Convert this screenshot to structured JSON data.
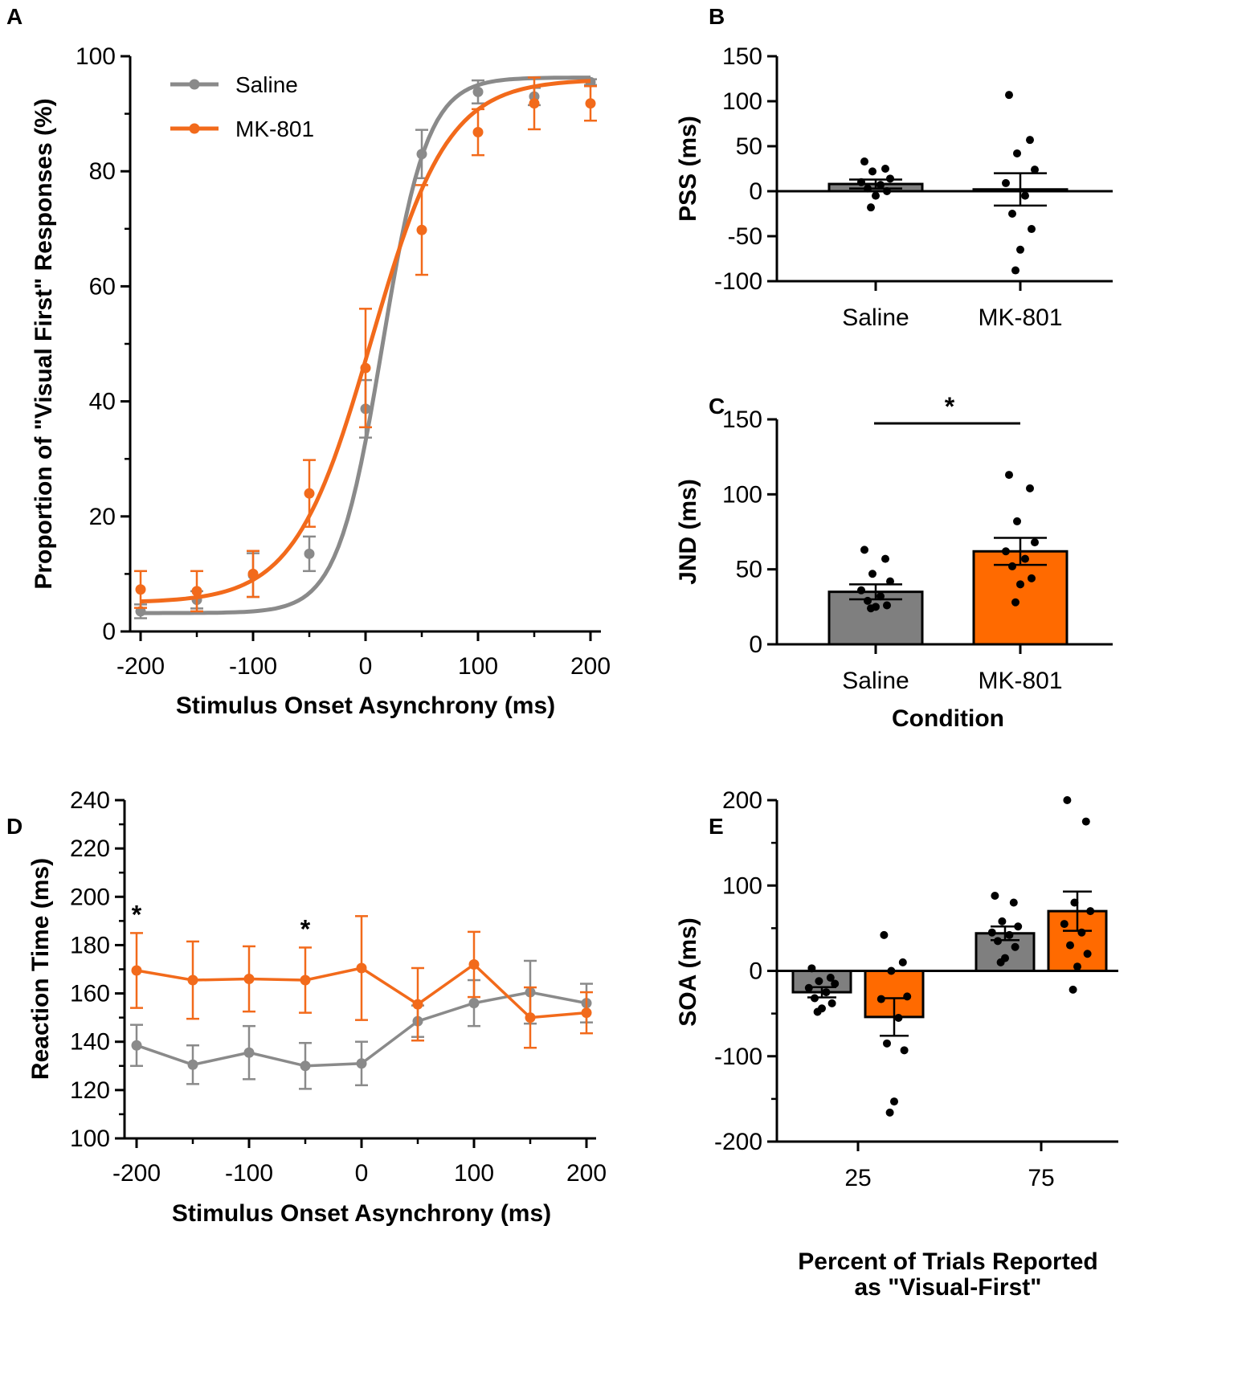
{
  "chart_data": [
    {
      "panel": "A",
      "type": "scatter",
      "xlabel": "Stimulus Onset Asynchrony (ms)",
      "ylabel": "Proportion of \"Visual First\" Responses (%)",
      "xlim": [
        -200,
        200
      ],
      "ylim": [
        0,
        100
      ],
      "xticks": [
        -200,
        -100,
        0,
        100,
        200
      ],
      "yticks": [
        0,
        20,
        40,
        60,
        80,
        100
      ],
      "legend_position": "top-left",
      "x": [
        -200,
        -150,
        -100,
        -50,
        0,
        50,
        100,
        150,
        200
      ],
      "series": [
        {
          "name": "Saline",
          "color": "#8a8a8a",
          "values": [
            3.5,
            5.5,
            9.8,
            13.5,
            38.7,
            83,
            93.8,
            93,
            95.5
          ],
          "errors": [
            1.2,
            1.5,
            3.8,
            3.0,
            5.0,
            4.2,
            2.0,
            1.5,
            0.5
          ],
          "fit": {
            "lower": 3.2,
            "upper": 96.3,
            "x50": 15,
            "slope": 20
          }
        },
        {
          "name": "MK-801",
          "color": "#f26a1b",
          "values": [
            7.3,
            7.0,
            10.0,
            24.0,
            45.8,
            69.8,
            86.8,
            91.8,
            91.8
          ],
          "errors": [
            3.2,
            3.5,
            4.0,
            5.8,
            10.3,
            7.8,
            4.0,
            4.5,
            3.0
          ],
          "fit": {
            "lower": 5.0,
            "upper": 96.0,
            "x50": 5,
            "slope": 34
          }
        }
      ]
    },
    {
      "panel": "B",
      "type": "bar",
      "ylabel": "PSS (ms)",
      "categories": [
        "Saline",
        "MK-801"
      ],
      "colors": [
        "#7f7f7f",
        "#ff6a00"
      ],
      "ylim": [
        -100,
        150
      ],
      "yticks": [
        -100,
        -50,
        0,
        50,
        100,
        150
      ],
      "values": [
        8,
        2
      ],
      "sem": [
        5,
        18
      ],
      "points": [
        [
          33,
          25,
          22,
          14,
          10,
          7,
          3,
          0,
          -5,
          -18
        ],
        [
          107,
          57,
          42,
          24,
          9,
          -5,
          -25,
          -42,
          -65,
          -88
        ]
      ]
    },
    {
      "panel": "C",
      "type": "bar",
      "ylabel": "JND (ms)",
      "xlabel": "Condition",
      "categories": [
        "Saline",
        "MK-801"
      ],
      "colors": [
        "#7f7f7f",
        "#ff6a00"
      ],
      "ylim": [
        0,
        150
      ],
      "yticks": [
        0,
        50,
        100,
        150
      ],
      "values": [
        35,
        62
      ],
      "sem": [
        5,
        9
      ],
      "points": [
        [
          63,
          57,
          47,
          42,
          36,
          32,
          29,
          26,
          25,
          24
        ],
        [
          113,
          104,
          82,
          68,
          62,
          57,
          52,
          44,
          40,
          28
        ]
      ],
      "significance": "*"
    },
    {
      "panel": "D",
      "type": "line",
      "xlabel": "Stimulus Onset Asynchrony (ms)",
      "ylabel": "Reaction Time (ms)",
      "xlim": [
        -200,
        200
      ],
      "ylim": [
        100,
        240
      ],
      "xticks": [
        -200,
        -100,
        0,
        100,
        200
      ],
      "yticks": [
        100,
        120,
        140,
        160,
        180,
        200,
        220,
        240
      ],
      "x": [
        -200,
        -150,
        -100,
        -50,
        0,
        50,
        100,
        150,
        200
      ],
      "series": [
        {
          "name": "Saline",
          "color": "#8a8a8a",
          "values": [
            138.5,
            130.5,
            135.5,
            130,
            131,
            148.5,
            156,
            160.5,
            156
          ],
          "errors": [
            8.5,
            8,
            11,
            9.5,
            9,
            6.5,
            9.5,
            13,
            8
          ]
        },
        {
          "name": "MK-801",
          "color": "#f26a1b",
          "values": [
            169.5,
            165.5,
            166,
            165.5,
            170.5,
            155.5,
            172,
            150,
            152
          ],
          "errors": [
            15.5,
            16,
            13.5,
            13.5,
            21.5,
            15,
            13.5,
            12.5,
            8.5
          ]
        }
      ],
      "annotations": [
        {
          "x": -200,
          "text": "*"
        },
        {
          "x": -50,
          "text": "*"
        }
      ]
    },
    {
      "panel": "E",
      "type": "bar",
      "ylabel": "SOA (ms)",
      "xlabel": "Percent of Trials Reported as \"Visual-First\"",
      "categories": [
        "25",
        "75"
      ],
      "series": [
        {
          "name": "Saline",
          "color": "#7f7f7f",
          "values": [
            -25,
            44
          ],
          "sem": [
            6,
            8
          ],
          "points": [
            [
              3,
              -8,
              -12,
              -15,
              -20,
              -25,
              -32,
              -38,
              -44,
              -48
            ],
            [
              88,
              80,
              58,
              52,
              45,
              42,
              35,
              28,
              15,
              10
            ]
          ]
        },
        {
          "name": "MK-801",
          "color": "#ff6a00",
          "values": [
            -54,
            70
          ],
          "sem": [
            22,
            23
          ],
          "points": [
            [
              42,
              10,
              0,
              -30,
              -33,
              -55,
              -85,
              -93,
              -153,
              -166
            ],
            [
              200,
              175,
              80,
              70,
              55,
              45,
              30,
              20,
              5,
              -22
            ]
          ]
        }
      ],
      "ylim": [
        -200,
        200
      ],
      "yticks": [
        -200,
        -100,
        0,
        100,
        200
      ]
    }
  ]
}
